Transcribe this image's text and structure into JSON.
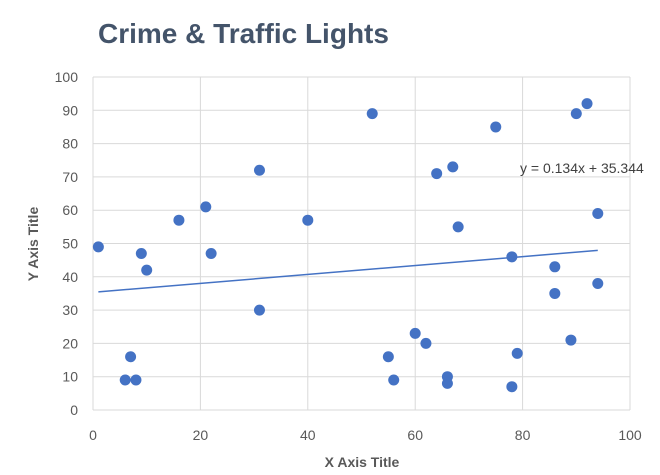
{
  "chart_data": {
    "type": "scatter",
    "title": "Crime & Traffic Lights",
    "xlabel": "X Axis Title",
    "ylabel": "Y Axis Title",
    "xlim": [
      0,
      100
    ],
    "ylim": [
      0,
      100
    ],
    "xticks": [
      0,
      20,
      40,
      60,
      80,
      100
    ],
    "yticks": [
      0,
      10,
      20,
      30,
      40,
      50,
      60,
      70,
      80,
      90,
      100
    ],
    "grid": true,
    "marker_color": "#4472c4",
    "trendline": {
      "label": "y = 0.134x + 35.344",
      "slope": 0.134,
      "intercept": 35.344,
      "x_range": [
        1,
        94
      ],
      "color": "#4472c4"
    },
    "points": [
      {
        "x": 1,
        "y": 49
      },
      {
        "x": 6,
        "y": 9
      },
      {
        "x": 7,
        "y": 16
      },
      {
        "x": 8,
        "y": 9
      },
      {
        "x": 9,
        "y": 47
      },
      {
        "x": 10,
        "y": 42
      },
      {
        "x": 16,
        "y": 57
      },
      {
        "x": 21,
        "y": 61
      },
      {
        "x": 22,
        "y": 47
      },
      {
        "x": 31,
        "y": 72
      },
      {
        "x": 31,
        "y": 30
      },
      {
        "x": 40,
        "y": 57
      },
      {
        "x": 52,
        "y": 89
      },
      {
        "x": 55,
        "y": 16
      },
      {
        "x": 56,
        "y": 9
      },
      {
        "x": 60,
        "y": 23
      },
      {
        "x": 62,
        "y": 20
      },
      {
        "x": 64,
        "y": 71
      },
      {
        "x": 66,
        "y": 10
      },
      {
        "x": 66,
        "y": 8
      },
      {
        "x": 67,
        "y": 73
      },
      {
        "x": 68,
        "y": 55
      },
      {
        "x": 75,
        "y": 85
      },
      {
        "x": 78,
        "y": 46
      },
      {
        "x": 78,
        "y": 7
      },
      {
        "x": 79,
        "y": 17
      },
      {
        "x": 86,
        "y": 43
      },
      {
        "x": 86,
        "y": 35
      },
      {
        "x": 89,
        "y": 21
      },
      {
        "x": 90,
        "y": 89
      },
      {
        "x": 92,
        "y": 92
      },
      {
        "x": 94,
        "y": 59
      },
      {
        "x": 94,
        "y": 38
      }
    ]
  }
}
